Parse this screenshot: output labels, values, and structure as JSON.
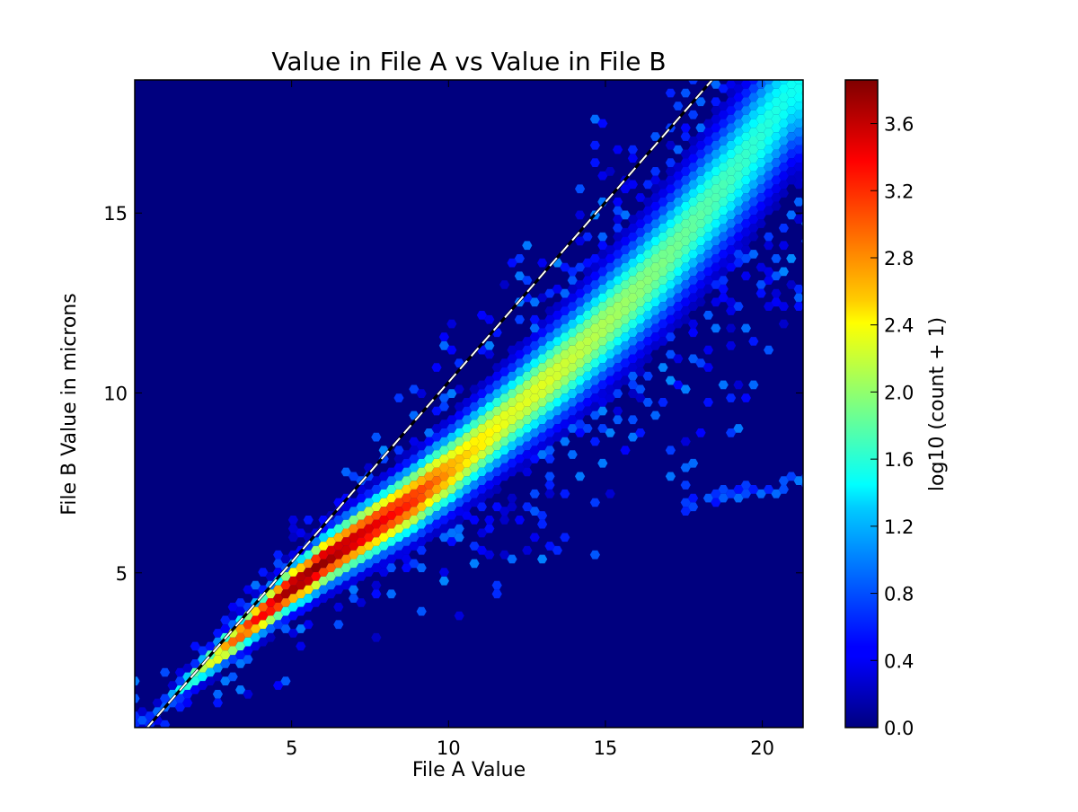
{
  "chart_data": {
    "type": "heatmap",
    "subtype": "hexbin",
    "title": "Value in File A vs Value in File B",
    "xlabel": "File A Value",
    "ylabel": "File B Value in microns",
    "xlim": [
      0,
      21.3
    ],
    "ylim": [
      0.7,
      18.7
    ],
    "xticks": [
      5,
      10,
      15,
      20
    ],
    "xtick_labels": [
      "5",
      "10",
      "15",
      "20"
    ],
    "yticks": [
      5,
      10,
      15
    ],
    "ytick_labels": [
      "5",
      "10",
      "15"
    ],
    "grid": false,
    "colorbar": {
      "label": "log10 (count + 1)",
      "colormap": "jet",
      "range": [
        0,
        3.86
      ],
      "ticks": [
        0.0,
        0.4,
        0.8,
        1.2,
        1.6,
        2.0,
        2.4,
        2.8,
        3.2,
        3.6
      ],
      "tick_labels": [
        "0.0",
        "0.4",
        "0.8",
        "1.2",
        "1.6",
        "2.0",
        "2.4",
        "2.8",
        "3.2",
        "3.6"
      ]
    },
    "background_color": "#00007f",
    "reference_line": {
      "style": "dashed",
      "colors": [
        "#000000",
        "#ffffff"
      ],
      "slope": 1.0,
      "intercept": 0.3
    },
    "density_ridge": {
      "x": [
        0.5,
        1.0,
        1.5,
        2.0,
        2.5,
        3.0,
        3.5,
        4.0,
        4.5,
        5.0,
        5.5,
        6.0,
        6.5,
        7.0,
        7.5,
        8.0,
        8.5,
        9.0,
        9.5,
        10.0,
        10.5,
        11.0,
        12.0,
        13.0,
        14.0,
        15.0,
        16.0,
        17.0,
        18.0,
        19.0,
        20.0,
        21.0
      ],
      "y": [
        0.9,
        1.4,
        1.8,
        2.2,
        2.6,
        3.0,
        3.4,
        3.8,
        4.2,
        4.6,
        4.9,
        5.3,
        5.6,
        5.9,
        6.2,
        6.5,
        6.8,
        7.1,
        7.5,
        7.8,
        8.2,
        8.6,
        9.4,
        10.2,
        11.0,
        11.9,
        12.8,
        13.8,
        14.9,
        16.0,
        17.2,
        18.5
      ],
      "log_count": [
        0.8,
        1.0,
        1.5,
        2.0,
        2.4,
        2.9,
        3.2,
        3.4,
        3.6,
        3.8,
        3.8,
        3.8,
        3.7,
        3.6,
        3.5,
        3.4,
        3.3,
        3.2,
        3.0,
        2.8,
        2.6,
        2.5,
        2.3,
        2.3,
        2.2,
        2.1,
        2.0,
        1.9,
        1.8,
        1.7,
        1.6,
        1.5
      ]
    },
    "outlier_branch": {
      "x": [
        17.5,
        19.0,
        20.5,
        21.3
      ],
      "y": [
        6.9,
        7.2,
        7.4,
        7.6
      ],
      "log_count": [
        0.6,
        0.8,
        0.9,
        0.8
      ]
    }
  }
}
